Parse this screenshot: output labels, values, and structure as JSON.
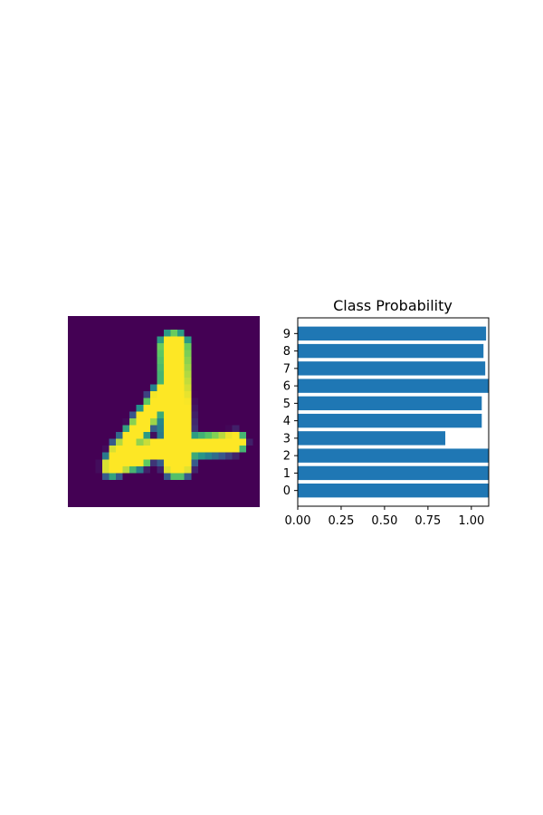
{
  "image_panel": {
    "description_grid_size": 28,
    "colormap": "viridis",
    "digit": "4"
  },
  "chart_data": {
    "type": "bar",
    "orientation": "horizontal",
    "title": "Class Probability",
    "categories": [
      "0",
      "1",
      "2",
      "3",
      "4",
      "5",
      "6",
      "7",
      "8",
      "9"
    ],
    "values": [
      1.1,
      1.1,
      1.1,
      0.85,
      1.06,
      1.06,
      1.1,
      1.08,
      1.07,
      1.085
    ],
    "xlim": [
      0,
      1.1
    ],
    "xticks": [
      "0.00",
      "0.25",
      "0.50",
      "0.75",
      "1.00"
    ],
    "xtick_values": [
      0,
      0.25,
      0.5,
      0.75,
      1.0
    ],
    "bar_color": "#1f77b4",
    "grid": false
  }
}
